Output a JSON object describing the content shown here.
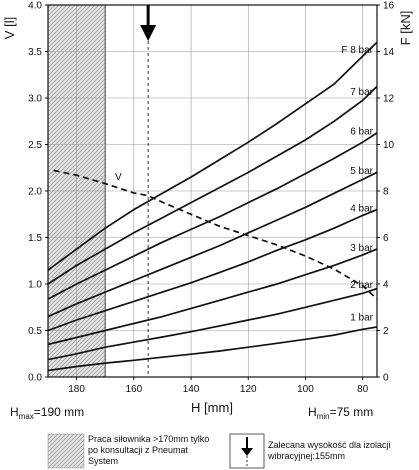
{
  "chart_data": {
    "type": "line",
    "title": "",
    "xlabel": "H [mm]",
    "ylabel": "V [l]",
    "y2label": "F [kN]",
    "xlim": [
      190,
      75
    ],
    "ylim": [
      0,
      4
    ],
    "y2lim": [
      0,
      16
    ],
    "xticks": [
      180,
      160,
      140,
      120,
      100,
      80
    ],
    "yticks": [
      "0.0",
      "0.5",
      "1.0",
      "1.5",
      "2.0",
      "2.5",
      "3.0",
      "3.5",
      "4.0"
    ],
    "y2ticks": [
      "0",
      "2",
      "4",
      "6",
      "8",
      "10",
      "12",
      "14",
      "16"
    ],
    "grid": true,
    "x_min_label": {
      "prefix": "H",
      "sub": "max",
      "suffix": "=190 mm"
    },
    "x_max_label": {
      "prefix": "H",
      "sub": "min",
      "suffix": "=75 mm"
    },
    "volume_curve": {
      "name": "V",
      "axis": "left",
      "x": [
        188,
        180,
        170,
        160,
        155,
        150,
        140,
        130,
        120,
        110,
        100,
        90,
        80,
        75
      ],
      "y": [
        2.22,
        2.17,
        2.08,
        1.98,
        1.95,
        1.88,
        1.75,
        1.62,
        1.52,
        1.42,
        1.3,
        1.16,
        0.98,
        0.84
      ]
    },
    "series": [
      {
        "name": "1 bar",
        "axis": "right",
        "x": [
          190,
          180,
          170,
          160,
          150,
          140,
          130,
          120,
          110,
          100,
          90,
          80,
          75
        ],
        "y": [
          0.28,
          0.45,
          0.6,
          0.72,
          0.85,
          0.98,
          1.12,
          1.28,
          1.45,
          1.62,
          1.8,
          2.05,
          2.15
        ]
      },
      {
        "name": "2 bar",
        "axis": "right",
        "x": [
          190,
          180,
          170,
          160,
          150,
          140,
          130,
          120,
          110,
          100,
          90,
          80,
          75
        ],
        "y": [
          0.75,
          1.0,
          1.28,
          1.5,
          1.72,
          1.95,
          2.2,
          2.45,
          2.7,
          3.0,
          3.3,
          3.6,
          3.8
        ]
      },
      {
        "name": "3 bar",
        "axis": "right",
        "x": [
          190,
          180,
          170,
          160,
          150,
          140,
          130,
          120,
          110,
          100,
          90,
          80,
          75
        ],
        "y": [
          1.4,
          1.7,
          2.0,
          2.3,
          2.6,
          2.95,
          3.3,
          3.65,
          4.0,
          4.4,
          4.8,
          5.25,
          5.5
        ]
      },
      {
        "name": "4 bar",
        "axis": "right",
        "x": [
          190,
          180,
          170,
          160,
          150,
          140,
          130,
          120,
          110,
          100,
          90,
          80,
          75
        ],
        "y": [
          2.0,
          2.45,
          2.85,
          3.25,
          3.65,
          4.05,
          4.5,
          4.95,
          5.45,
          5.9,
          6.4,
          6.95,
          7.2
        ]
      },
      {
        "name": "5 bar",
        "axis": "right",
        "x": [
          190,
          180,
          170,
          160,
          150,
          140,
          130,
          120,
          110,
          100,
          90,
          80,
          75
        ],
        "y": [
          2.6,
          3.15,
          3.65,
          4.15,
          4.65,
          5.15,
          5.65,
          6.2,
          6.75,
          7.3,
          7.9,
          8.5,
          8.8
        ]
      },
      {
        "name": "6 bar",
        "axis": "right",
        "x": [
          190,
          180,
          170,
          160,
          150,
          140,
          130,
          120,
          110,
          100,
          90,
          80,
          75
        ],
        "y": [
          3.35,
          4.0,
          4.6,
          5.2,
          5.8,
          6.35,
          6.9,
          7.5,
          8.1,
          8.75,
          9.4,
          10.1,
          10.5
        ]
      },
      {
        "name": "7 bar",
        "axis": "right",
        "x": [
          190,
          180,
          170,
          160,
          150,
          140,
          130,
          120,
          110,
          100,
          90,
          80,
          75
        ],
        "y": [
          4.0,
          4.8,
          5.5,
          6.2,
          6.85,
          7.5,
          8.15,
          8.8,
          9.5,
          10.2,
          11.0,
          11.9,
          12.5
        ]
      },
      {
        "name": "8 bar",
        "axis": "right",
        "x": [
          190,
          180,
          170,
          160,
          150,
          140,
          130,
          120,
          110,
          100,
          90,
          80,
          75
        ],
        "y": [
          4.6,
          5.5,
          6.4,
          7.2,
          7.9,
          8.6,
          9.35,
          10.1,
          10.9,
          11.75,
          12.6,
          13.8,
          14.4
        ]
      }
    ],
    "series_labels": [
      {
        "text": "1 bar",
        "x": 80,
        "y": 2.3
      },
      {
        "text": "2 bar",
        "x": 80,
        "y": 3.7
      },
      {
        "text": "3 bar",
        "x": 80,
        "y": 5.3
      },
      {
        "text": "4 bar",
        "x": 80,
        "y": 7.0
      },
      {
        "text": "5 bar",
        "x": 80,
        "y": 8.6
      },
      {
        "text": "6 bar",
        "x": 80,
        "y": 10.3
      },
      {
        "text": "7 bar",
        "x": 80,
        "y": 12.0
      },
      {
        "text": "F 8 bar",
        "x": 80,
        "y": 13.8
      }
    ],
    "restricted_zone": {
      "from": 190,
      "to": 170
    },
    "recommended_height": 155,
    "legend": {
      "hatched_text": "Praca siłownika >170mm tylko po konsultacji z Pneumat System",
      "arrow_text": "Zalecana wysokość dla izolacji wibracyjnej:155mm"
    }
  },
  "colors": {
    "line": "#111111",
    "grid": "#9a9a9a",
    "hatch": "#8a8a8a",
    "restricted_bg": "#e4e4e4"
  }
}
